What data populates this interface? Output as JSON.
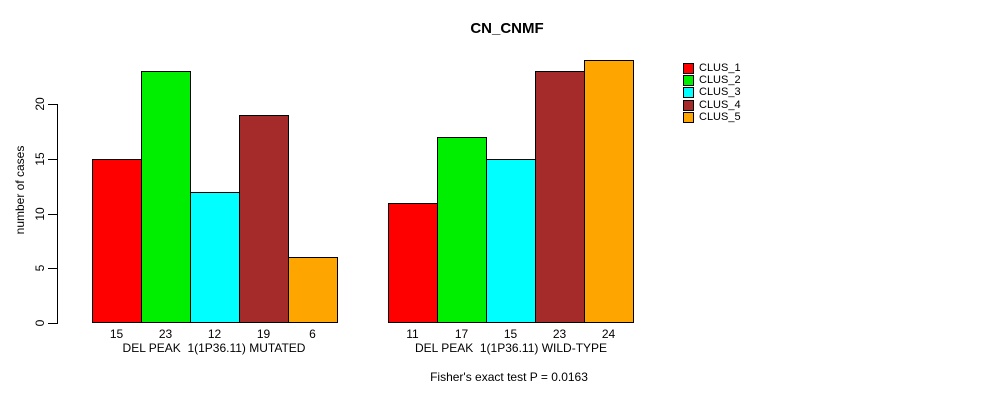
{
  "chart_data": {
    "type": "bar",
    "title": "CN_CNMF",
    "ylabel": "number of cases",
    "yticks": [
      0,
      5,
      10,
      15,
      20
    ],
    "ylim": [
      0,
      24
    ],
    "grid": false,
    "legend_position": "right-outside",
    "categories": [
      "DEL PEAK  1(1P36.11) MUTATED",
      "DEL PEAK  1(1P36.11) WILD-TYPE"
    ],
    "series": [
      {
        "name": "CLUS_1",
        "color": "#FF0000",
        "values": [
          15,
          11
        ]
      },
      {
        "name": "CLUS_2",
        "color": "#00EE00",
        "values": [
          23,
          17
        ]
      },
      {
        "name": "CLUS_3",
        "color": "#00FFFF",
        "values": [
          12,
          15
        ]
      },
      {
        "name": "CLUS_4",
        "color": "#A52A2A",
        "values": [
          19,
          23
        ]
      },
      {
        "name": "CLUS_5",
        "color": "#FFA500",
        "values": [
          6,
          24
        ]
      }
    ],
    "bar_value_labels": {
      "group_1": [
        15,
        23,
        12,
        19,
        6
      ],
      "group_2": [
        11,
        17,
        15,
        23,
        24
      ]
    },
    "caption": "Fisher's exact test P = 0.0163"
  }
}
